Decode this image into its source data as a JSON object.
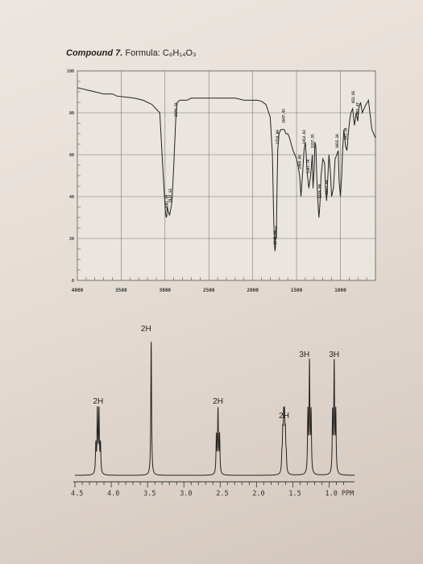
{
  "page": {
    "compound_label": "Compound 7.",
    "formula_label": "Formula:",
    "formula": "C₈H₁₄O₃"
  },
  "chart_data": [
    {
      "type": "line",
      "name": "IR spectrum",
      "xlim": [
        4000,
        600
      ],
      "ylim": [
        0,
        100
      ],
      "grid": true,
      "x_ticks": [
        "4000",
        "3500",
        "3000",
        "2500",
        "2000",
        "1500",
        "1000"
      ],
      "x_tick_values": [
        4000,
        3500,
        3000,
        2500,
        2000,
        1500,
        1000
      ],
      "y_ticks": [
        "100",
        "80",
        "60",
        "40",
        "20",
        "0"
      ],
      "y_tick_values": [
        100,
        80,
        60,
        40,
        20,
        0
      ],
      "series": [
        {
          "x": [
            4000,
            3900,
            3800,
            3700,
            3600,
            3550,
            3450,
            3350,
            3250,
            3150,
            3060,
            3020,
            2995,
            2985,
            2980,
            2975,
            2950,
            2935,
            2920,
            2900,
            2880,
            2870,
            2860,
            2830,
            2800,
            2750,
            2700,
            2600,
            2500,
            2400,
            2300,
            2200,
            2100,
            2000,
            1950,
            1900,
            1850,
            1800,
            1775,
            1760,
            1750,
            1745,
            1740,
            1735,
            1730,
            1725,
            1715,
            1700,
            1680,
            1660,
            1640,
            1620,
            1600,
            1580,
            1560,
            1540,
            1520,
            1500,
            1480,
            1465,
            1450,
            1430,
            1415,
            1400,
            1390,
            1380,
            1370,
            1360,
            1340,
            1320,
            1312,
            1300,
            1290,
            1280,
            1270,
            1260,
            1245,
            1234,
            1220,
            1200,
            1180,
            1170,
            1157,
            1145,
            1130,
            1115,
            1100,
            1080,
            1060,
            1040,
            1025,
            1015,
            1000,
            985,
            975,
            960,
            941,
            925,
            910,
            895,
            880,
            860,
            840,
            820,
            802,
            790,
            770,
            750,
            720,
            680,
            640,
            600
          ],
          "y": [
            92,
            91,
            90,
            89,
            89,
            88,
            87.5,
            87,
            86,
            84,
            80,
            50,
            32,
            30,
            31,
            35,
            31,
            34,
            38,
            55,
            75,
            82,
            85,
            86,
            86,
            86,
            87,
            87,
            87,
            87,
            87,
            87,
            86,
            86,
            86,
            85.5,
            84,
            78,
            60,
            28,
            16,
            14,
            16,
            26,
            20,
            38,
            62,
            70,
            72,
            72,
            72,
            70,
            70,
            68,
            65,
            62,
            60,
            58,
            54,
            50,
            40,
            52,
            62,
            66,
            60,
            52,
            48,
            44,
            50,
            60,
            44,
            52,
            66,
            64,
            50,
            40,
            30,
            36,
            50,
            58,
            56,
            44,
            38,
            48,
            60,
            52,
            40,
            44,
            58,
            60,
            62,
            48,
            40,
            50,
            62,
            72,
            64,
            62,
            70,
            76,
            80,
            82,
            74,
            80,
            76,
            82,
            85,
            80,
            83,
            86,
            72,
            68
          ]
        }
      ],
      "annotations": [
        {
          "x": 2981,
          "text": "2981.99"
        },
        {
          "x": 2937,
          "text": "2937.55"
        },
        {
          "x": 2876,
          "text": "2876.18"
        },
        {
          "x": 1745,
          "text": "1745.98"
        },
        {
          "x": 1718,
          "text": "1718.08"
        },
        {
          "x": 1647,
          "text": "1647.42"
        },
        {
          "x": 1466,
          "text": "1466.69"
        },
        {
          "x": 1412,
          "text": "1412.62"
        },
        {
          "x": 1367,
          "text": "1367.76"
        },
        {
          "x": 1317,
          "text": "1317.55"
        },
        {
          "x": 1234,
          "text": "1234.09"
        },
        {
          "x": 1157,
          "text": "1157.44"
        },
        {
          "x": 1035,
          "text": "1035.18"
        },
        {
          "x": 941,
          "text": "941.38"
        },
        {
          "x": 852,
          "text": "852.85"
        },
        {
          "x": 802,
          "text": "802.47"
        }
      ]
    },
    {
      "type": "line",
      "name": "1H NMR spectrum",
      "xlim": [
        4.5,
        0.65
      ],
      "ylim": [
        0,
        100
      ],
      "grid": false,
      "x_ticks": [
        "4.5",
        "4.0",
        "3.5",
        "3.0",
        "2.5",
        "2.0",
        "1.5",
        "1.0 PPM"
      ],
      "x_tick_values": [
        4.5,
        4.0,
        3.5,
        3.0,
        2.5,
        2.0,
        1.5,
        1.0
      ],
      "peaks": [
        {
          "center": 4.18,
          "height": 44,
          "width": 0.006,
          "lines": [
            -0.032,
            -0.011,
            0.011,
            0.032
          ],
          "ratios": [
            0.45,
            1,
            1,
            0.45
          ]
        },
        {
          "center": 3.45,
          "height": 94,
          "width": 0.006,
          "lines": [
            0
          ],
          "ratios": [
            1
          ]
        },
        {
          "center": 2.53,
          "height": 44,
          "width": 0.006,
          "lines": [
            -0.022,
            0,
            0.022
          ],
          "ratios": [
            0.6,
            1,
            0.6
          ]
        },
        {
          "center": 1.62,
          "height": 34,
          "width": 0.006,
          "lines": [
            -0.03,
            -0.018,
            -0.006,
            0.006,
            0.018,
            0.03
          ],
          "ratios": [
            0.3,
            0.7,
            1,
            1,
            0.7,
            0.3
          ]
        },
        {
          "center": 1.27,
          "height": 76,
          "width": 0.006,
          "lines": [
            -0.022,
            0,
            0.022
          ],
          "ratios": [
            0.55,
            1,
            0.55
          ]
        },
        {
          "center": 0.93,
          "height": 76,
          "width": 0.006,
          "lines": [
            -0.022,
            0,
            0.022
          ],
          "ratios": [
            0.55,
            1,
            0.55
          ]
        }
      ],
      "integrations": [
        {
          "label": "2H",
          "x": 4.18
        },
        {
          "label": "2H",
          "x": 3.52
        },
        {
          "label": "2H",
          "x": 2.53
        },
        {
          "label": "2H",
          "x": 1.62
        },
        {
          "label": "3H",
          "x": 1.34
        },
        {
          "label": "3H",
          "x": 0.93
        }
      ]
    }
  ]
}
